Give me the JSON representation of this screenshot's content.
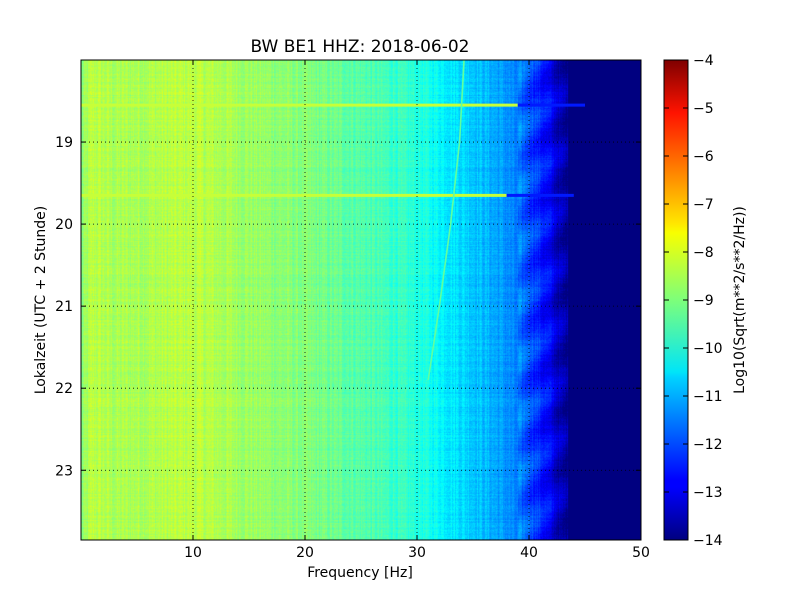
{
  "chart_data": {
    "type": "heatmap",
    "title": "BW BE1 HHZ: 2018-06-02",
    "xlabel": "Frequency [Hz]",
    "ylabel": "Lokalzeit (UTC + 2 Stunde)",
    "xlim": [
      0,
      50
    ],
    "ylim": [
      18.0,
      23.85
    ],
    "y_inverted": true,
    "x_ticks": [
      10,
      20,
      30,
      40,
      50
    ],
    "x_tick_labels": [
      "10",
      "20",
      "30",
      "40",
      "50"
    ],
    "y_ticks": [
      19,
      20,
      21,
      22,
      23
    ],
    "y_tick_labels": [
      "19",
      "20",
      "21",
      "22",
      "23"
    ],
    "grid": true,
    "colorbar": {
      "label": "Log10(Sqrt(m**2/s**2/Hz))",
      "colormap": "jet",
      "range": [
        -14,
        -4
      ],
      "ticks": [
        -4,
        -5,
        -6,
        -7,
        -8,
        -9,
        -10,
        -11,
        -12,
        -13,
        -14
      ],
      "tick_labels": [
        "−4",
        "−5",
        "−6",
        "−7",
        "−8",
        "−9",
        "−10",
        "−11",
        "−12",
        "−13",
        "−14"
      ]
    },
    "spectral_profile": {
      "frequency_hz": [
        0,
        1,
        3,
        7,
        10,
        15,
        20,
        25,
        30,
        33,
        36,
        38,
        40,
        41,
        42,
        43,
        45,
        50
      ],
      "log10_amplitude": [
        -9.0,
        -8.4,
        -8.6,
        -8.5,
        -8.4,
        -8.7,
        -9.0,
        -9.4,
        -9.9,
        -10.4,
        -10.9,
        -11.3,
        -11.9,
        -12.4,
        -12.9,
        -13.6,
        -14.0,
        -14.0
      ]
    },
    "features": {
      "horizontal_lines": [
        {
          "time": 18.55,
          "end_frequency_hz": 45,
          "log10_amplitude": -8.3
        },
        {
          "time": 19.65,
          "end_frequency_hz": 44,
          "log10_amplitude": -8.3
        }
      ],
      "drifting_line": {
        "points": [
          [
            34.2,
            18.0
          ],
          [
            33.8,
            19.0
          ],
          [
            33.0,
            20.0
          ],
          [
            32.0,
            21.0
          ],
          [
            31.0,
            21.9
          ]
        ],
        "log10_amplitude": -9.3
      }
    }
  }
}
